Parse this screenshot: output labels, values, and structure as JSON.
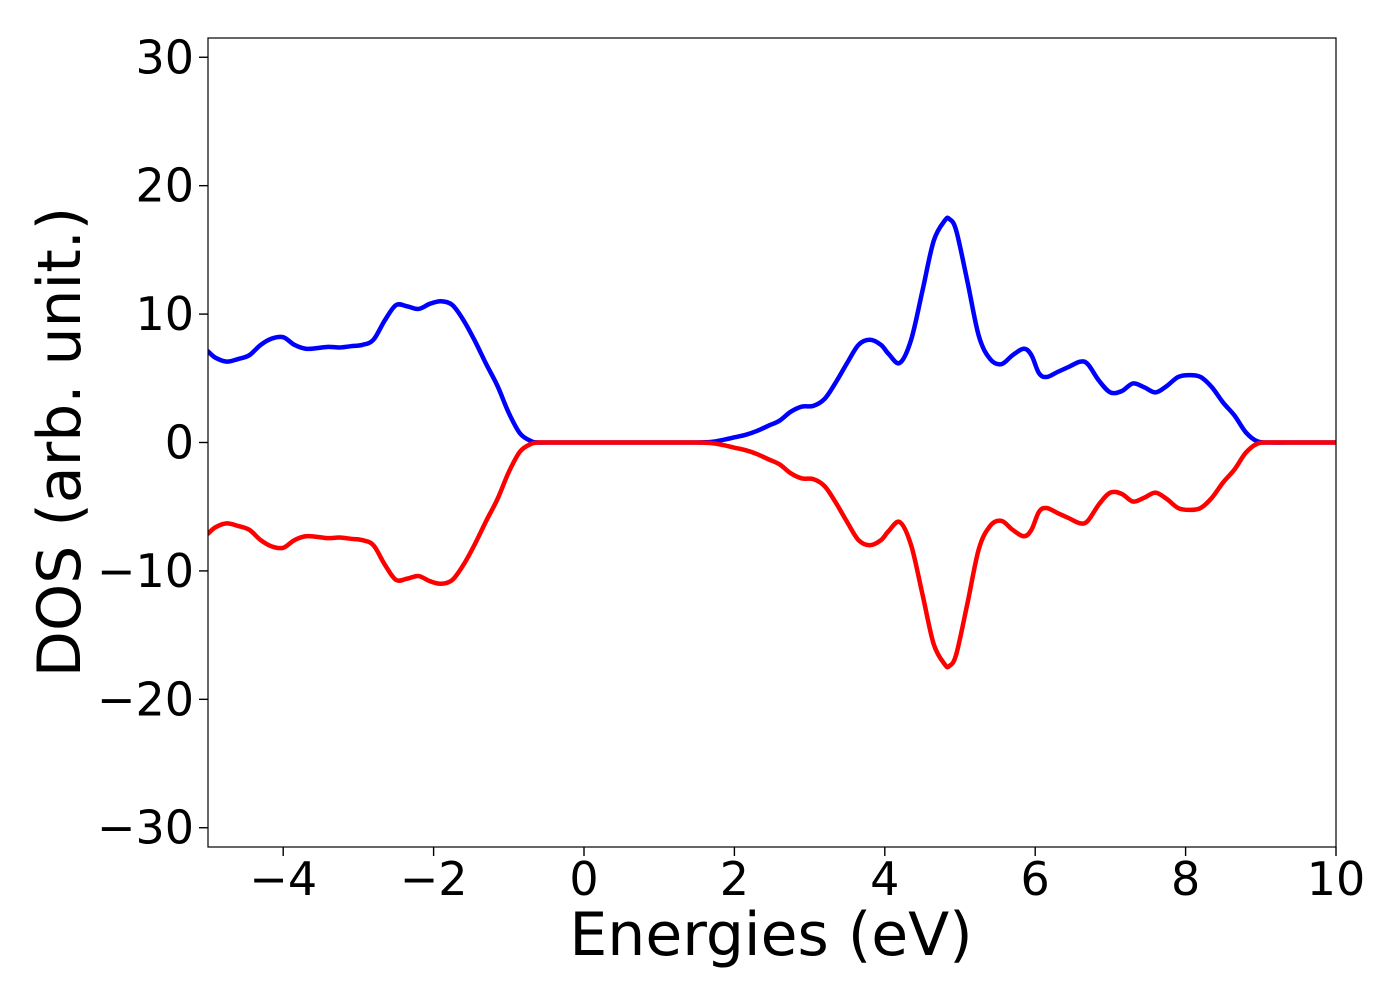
{
  "chart_data": {
    "type": "line",
    "title": "",
    "xlabel": "Energies (eV)",
    "ylabel": "DOS (arb. unit.)",
    "xlim": [
      -5,
      10
    ],
    "ylim": [
      -31.5,
      31.5
    ],
    "x_ticks": [
      -4,
      -2,
      0,
      2,
      4,
      6,
      8,
      10
    ],
    "x_tick_labels": [
      "−4",
      "−2",
      "0",
      "2",
      "4",
      "6",
      "8",
      "10"
    ],
    "y_ticks": [
      -30,
      -20,
      -10,
      0,
      10,
      20,
      30
    ],
    "y_tick_labels": [
      "−30",
      "−20",
      "−10",
      "0",
      "10",
      "20",
      "30"
    ],
    "grid": false,
    "legend": "none",
    "series": [
      {
        "color": "#0000ff",
        "x": [
          -5.0,
          -4.9,
          -4.75,
          -4.6,
          -4.45,
          -4.3,
          -4.15,
          -4.0,
          -3.85,
          -3.7,
          -3.55,
          -3.4,
          -3.25,
          -3.1,
          -2.95,
          -2.8,
          -2.65,
          -2.5,
          -2.35,
          -2.2,
          -2.05,
          -1.9,
          -1.75,
          -1.6,
          -1.45,
          -1.3,
          -1.15,
          -1.0,
          -0.85,
          -0.7,
          -0.6,
          -0.5,
          0.0,
          0.5,
          1.0,
          1.5,
          1.7,
          1.85,
          2.0,
          2.15,
          2.3,
          2.45,
          2.6,
          2.75,
          2.9,
          3.05,
          3.2,
          3.35,
          3.5,
          3.65,
          3.8,
          3.95,
          4.05,
          4.2,
          4.35,
          4.5,
          4.65,
          4.8,
          4.86,
          4.95,
          5.1,
          5.25,
          5.4,
          5.55,
          5.7,
          5.85,
          5.95,
          6.05,
          6.15,
          6.3,
          6.45,
          6.6,
          6.7,
          6.85,
          7.0,
          7.15,
          7.3,
          7.45,
          7.6,
          7.75,
          7.9,
          8.05,
          8.2,
          8.35,
          8.5,
          8.65,
          8.8,
          8.95,
          9.1,
          9.5,
          10.0
        ],
        "y": [
          7.1,
          6.6,
          6.3,
          6.5,
          6.8,
          7.6,
          8.1,
          8.2,
          7.6,
          7.3,
          7.35,
          7.45,
          7.4,
          7.5,
          7.6,
          8.0,
          9.5,
          10.7,
          10.6,
          10.4,
          10.8,
          11.0,
          10.7,
          9.5,
          7.9,
          6.1,
          4.4,
          2.3,
          0.7,
          0.1,
          0.0,
          0.0,
          0.0,
          0.0,
          0.0,
          0.0,
          0.05,
          0.2,
          0.4,
          0.6,
          0.9,
          1.3,
          1.7,
          2.4,
          2.8,
          2.85,
          3.4,
          4.7,
          6.2,
          7.6,
          8.0,
          7.6,
          6.9,
          6.2,
          8.0,
          11.8,
          15.7,
          17.3,
          17.4,
          16.5,
          12.5,
          8.3,
          6.5,
          6.1,
          6.8,
          7.3,
          6.8,
          5.4,
          5.1,
          5.5,
          5.9,
          6.3,
          6.1,
          4.8,
          3.9,
          4.0,
          4.6,
          4.3,
          3.9,
          4.4,
          5.1,
          5.25,
          5.1,
          4.3,
          3.1,
          2.1,
          0.8,
          0.1,
          0.0,
          0.0,
          0.0
        ]
      },
      {
        "color": "#ff0000",
        "x": [
          -5.0,
          -4.9,
          -4.75,
          -4.6,
          -4.45,
          -4.3,
          -4.15,
          -4.0,
          -3.85,
          -3.7,
          -3.55,
          -3.4,
          -3.25,
          -3.1,
          -2.95,
          -2.8,
          -2.65,
          -2.5,
          -2.35,
          -2.2,
          -2.05,
          -1.9,
          -1.75,
          -1.6,
          -1.45,
          -1.3,
          -1.15,
          -1.0,
          -0.85,
          -0.7,
          -0.6,
          -0.5,
          0.0,
          0.5,
          1.0,
          1.5,
          1.7,
          1.85,
          2.0,
          2.15,
          2.3,
          2.45,
          2.6,
          2.75,
          2.9,
          3.05,
          3.2,
          3.35,
          3.5,
          3.65,
          3.8,
          3.95,
          4.05,
          4.2,
          4.35,
          4.5,
          4.65,
          4.8,
          4.86,
          4.95,
          5.1,
          5.25,
          5.4,
          5.55,
          5.7,
          5.85,
          5.95,
          6.05,
          6.15,
          6.3,
          6.45,
          6.6,
          6.7,
          6.85,
          7.0,
          7.15,
          7.3,
          7.45,
          7.6,
          7.75,
          7.9,
          8.05,
          8.2,
          8.35,
          8.5,
          8.65,
          8.8,
          8.95,
          9.1,
          9.5,
          10.0
        ],
        "y": [
          -7.1,
          -6.6,
          -6.3,
          -6.5,
          -6.8,
          -7.6,
          -8.1,
          -8.2,
          -7.6,
          -7.3,
          -7.35,
          -7.45,
          -7.4,
          -7.5,
          -7.6,
          -8.0,
          -9.5,
          -10.7,
          -10.6,
          -10.4,
          -10.8,
          -11.0,
          -10.7,
          -9.5,
          -7.9,
          -6.1,
          -4.4,
          -2.3,
          -0.7,
          -0.1,
          0.0,
          0.0,
          0.0,
          0.0,
          0.0,
          0.0,
          -0.05,
          -0.2,
          -0.4,
          -0.6,
          -0.9,
          -1.3,
          -1.7,
          -2.4,
          -2.8,
          -2.85,
          -3.4,
          -4.7,
          -6.2,
          -7.6,
          -8.0,
          -7.6,
          -6.9,
          -6.2,
          -8.0,
          -11.8,
          -15.7,
          -17.3,
          -17.4,
          -16.5,
          -12.5,
          -8.3,
          -6.5,
          -6.1,
          -6.8,
          -7.3,
          -6.8,
          -5.4,
          -5.1,
          -5.5,
          -5.9,
          -6.3,
          -6.1,
          -4.8,
          -3.9,
          -4.0,
          -4.6,
          -4.3,
          -3.9,
          -4.4,
          -5.1,
          -5.25,
          -5.1,
          -4.3,
          -3.1,
          -2.1,
          -0.8,
          -0.1,
          0.0,
          0.0,
          0.0
        ]
      }
    ]
  }
}
